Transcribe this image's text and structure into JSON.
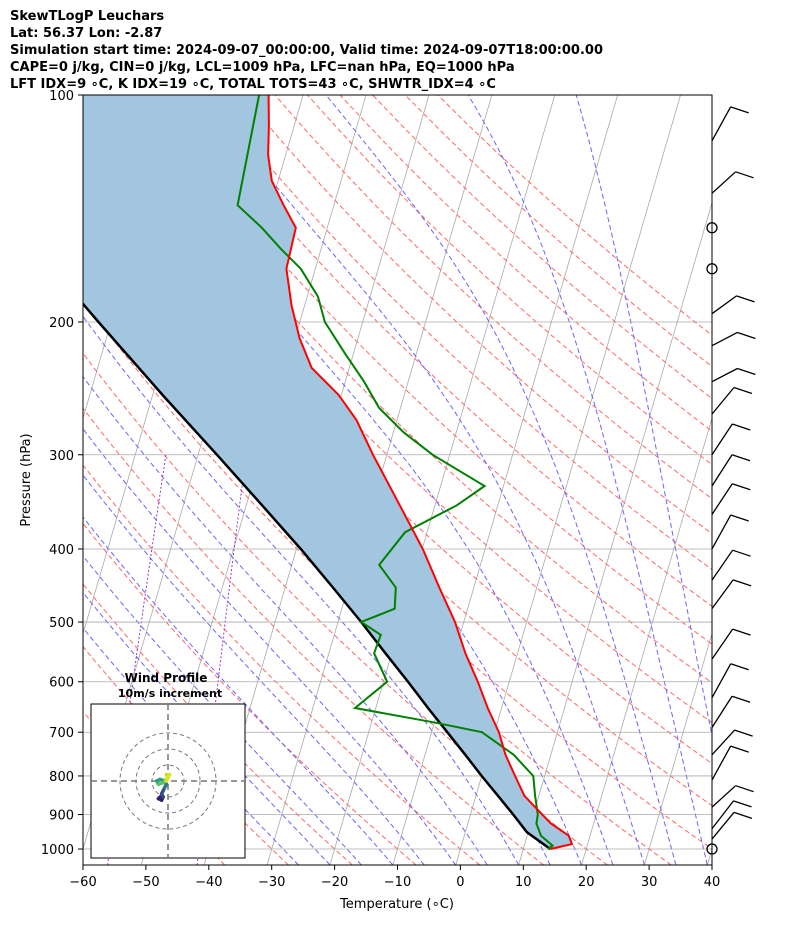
{
  "header": {
    "line1": "SkewTLogP Leuchars",
    "line2": "Lat: 56.37   Lon: -2.87",
    "line3": "Simulation start time: 2024-09-07_00:00:00, Valid time: 2024-09-07T18:00:00.00",
    "line4": "CAPE=0 j/kg, CIN=0 j/kg, LCL=1009 hPa, LFC=nan hPa, EQ=1000 hPa",
    "line5": "LFT IDX=9 ∘C, K IDX=19 ∘C, TOTAL TOTS=43 ∘C, SHWTR_IDX=4 ∘C"
  },
  "colors": {
    "temperature": "#ff0000",
    "dewpoint": "#008000",
    "parcel": "#000000",
    "cape_fill": "#a3c6e0",
    "dry_adiabat": "#ff6666",
    "moist_adiabat": "#6666ff",
    "mixing_ratio": "#9933cc",
    "isotherm": "#aaaaaa"
  },
  "chart_data": [
    {
      "type": "line",
      "chart": "skew-t log-p",
      "xlabel": "Temperature (∘C)",
      "ylabel": "Pressure (hPa)",
      "xlim": [
        -60,
        40
      ],
      "ylim": [
        1050,
        100
      ],
      "yscale": "log",
      "skew": 35,
      "xticks": [
        -60,
        -50,
        -40,
        -30,
        -20,
        -10,
        0,
        10,
        20,
        30,
        40
      ],
      "yticks": [
        1000,
        900,
        800,
        700,
        600,
        500,
        400,
        300,
        200,
        100
      ],
      "grid": true,
      "series": [
        {
          "role": "temperature",
          "p": [
            1000,
            985,
            960,
            925,
            900,
            850,
            800,
            750,
            700,
            650,
            600,
            550,
            500,
            450,
            400,
            350,
            300,
            270,
            250,
            230,
            210,
            190,
            170,
            150,
            140,
            130,
            120,
            110,
            100
          ],
          "t": [
            14.3,
            17.5,
            16.6,
            13.2,
            11.4,
            7.7,
            5.3,
            2.8,
            0.7,
            -2.2,
            -5.0,
            -8.3,
            -11.4,
            -15.5,
            -19.9,
            -25.6,
            -32.2,
            -36.4,
            -40.4,
            -46.0,
            -49.3,
            -52.1,
            -54.6,
            -55.0,
            -58.0,
            -61.0,
            -62.8,
            -64.0,
            -65.5
          ]
        },
        {
          "role": "dewpoint",
          "p": [
            1000,
            990,
            960,
            925,
            900,
            850,
            800,
            750,
            700,
            680,
            650,
            600,
            550,
            520,
            500,
            480,
            450,
            420,
            380,
            350,
            330,
            300,
            280,
            260,
            240,
            220,
            200,
            185,
            170,
            160,
            150,
            140,
            100
          ],
          "t": [
            13.9,
            14.5,
            12.2,
            10.9,
            10.7,
            9.4,
            8.2,
            4.1,
            -2.0,
            -9.8,
            -23.3,
            -19.4,
            -22.8,
            -22.6,
            -26.3,
            -21.6,
            -22.4,
            -26.1,
            -23.5,
            -16.5,
            -13.0,
            -22.7,
            -28.4,
            -33.4,
            -37.0,
            -41.4,
            -46.0,
            -48.3,
            -52.3,
            -56.4,
            -60.4,
            -65.3,
            -67.0
          ]
        },
        {
          "role": "parcel",
          "p": [
            1000,
            950,
            900,
            850,
            800,
            750,
            700,
            650,
            600,
            550,
            500,
            450,
            400,
            350,
            300,
            250,
            200,
            150,
            100
          ],
          "t": [
            14.3,
            9.8,
            6.8,
            3.5,
            0.0,
            -3.6,
            -7.5,
            -11.7,
            -16.1,
            -21.0,
            -26.3,
            -32.4,
            -39.3,
            -47.5,
            -57.0,
            -68.4,
            -82.0,
            -99.2,
            -122.6
          ]
        }
      ],
      "wind_barbs": [
        {
          "p": 1000,
          "u": 4,
          "v": 3,
          "kind": "calm-circle"
        },
        {
          "p": 970,
          "u": 6,
          "v": 4
        },
        {
          "p": 940,
          "u": 7,
          "v": 5
        },
        {
          "p": 880,
          "u": 6,
          "v": 3
        },
        {
          "p": 810,
          "u": 5,
          "v": 5
        },
        {
          "p": 750,
          "u": 5,
          "v": 3
        },
        {
          "p": 690,
          "u": 7,
          "v": 6
        },
        {
          "p": 630,
          "u": 6,
          "v": 6
        },
        {
          "p": 560,
          "u": 5,
          "v": 4
        },
        {
          "p": 480,
          "u": 4,
          "v": 3
        },
        {
          "p": 440,
          "u": 5,
          "v": 4
        },
        {
          "p": 400,
          "u": 4,
          "v": 4
        },
        {
          "p": 360,
          "u": 6,
          "v": 5
        },
        {
          "p": 330,
          "u": 7,
          "v": 6
        },
        {
          "p": 300,
          "u": 6,
          "v": 5
        },
        {
          "p": 265,
          "u": 6,
          "v": 4
        },
        {
          "p": 240,
          "u": 7,
          "v": 2
        },
        {
          "p": 215,
          "u": 7,
          "v": 2
        },
        {
          "p": 195,
          "u": 5,
          "v": 2
        },
        {
          "p": 170,
          "u": 0,
          "v": 0,
          "kind": "calm-circle"
        },
        {
          "p": 150,
          "u": 0,
          "v": 0,
          "kind": "calm-circle"
        },
        {
          "p": 135,
          "u": 2,
          "v": 1
        },
        {
          "p": 115,
          "u": 3,
          "v": 3
        }
      ]
    },
    {
      "type": "scatter",
      "chart": "hodograph",
      "title": "Wind Profile",
      "subtitle": "10m/s increment",
      "rings": [
        10,
        20,
        30
      ],
      "grid": true,
      "points_uv": [
        [
          -5,
          -10
        ],
        [
          -6,
          -11
        ],
        [
          -4,
          -12
        ],
        [
          -3,
          -10
        ],
        [
          -4,
          -8
        ],
        [
          -3,
          -6
        ],
        [
          -2,
          -4
        ],
        [
          -1,
          -2
        ],
        [
          -2,
          0
        ],
        [
          -5,
          1
        ],
        [
          -7,
          0
        ],
        [
          -6,
          -2
        ],
        [
          -3,
          -1
        ],
        [
          -1,
          1
        ],
        [
          0,
          3
        ],
        [
          -1,
          4
        ],
        [
          1,
          4
        ],
        [
          0,
          2
        ],
        [
          -1,
          0
        ]
      ]
    }
  ]
}
